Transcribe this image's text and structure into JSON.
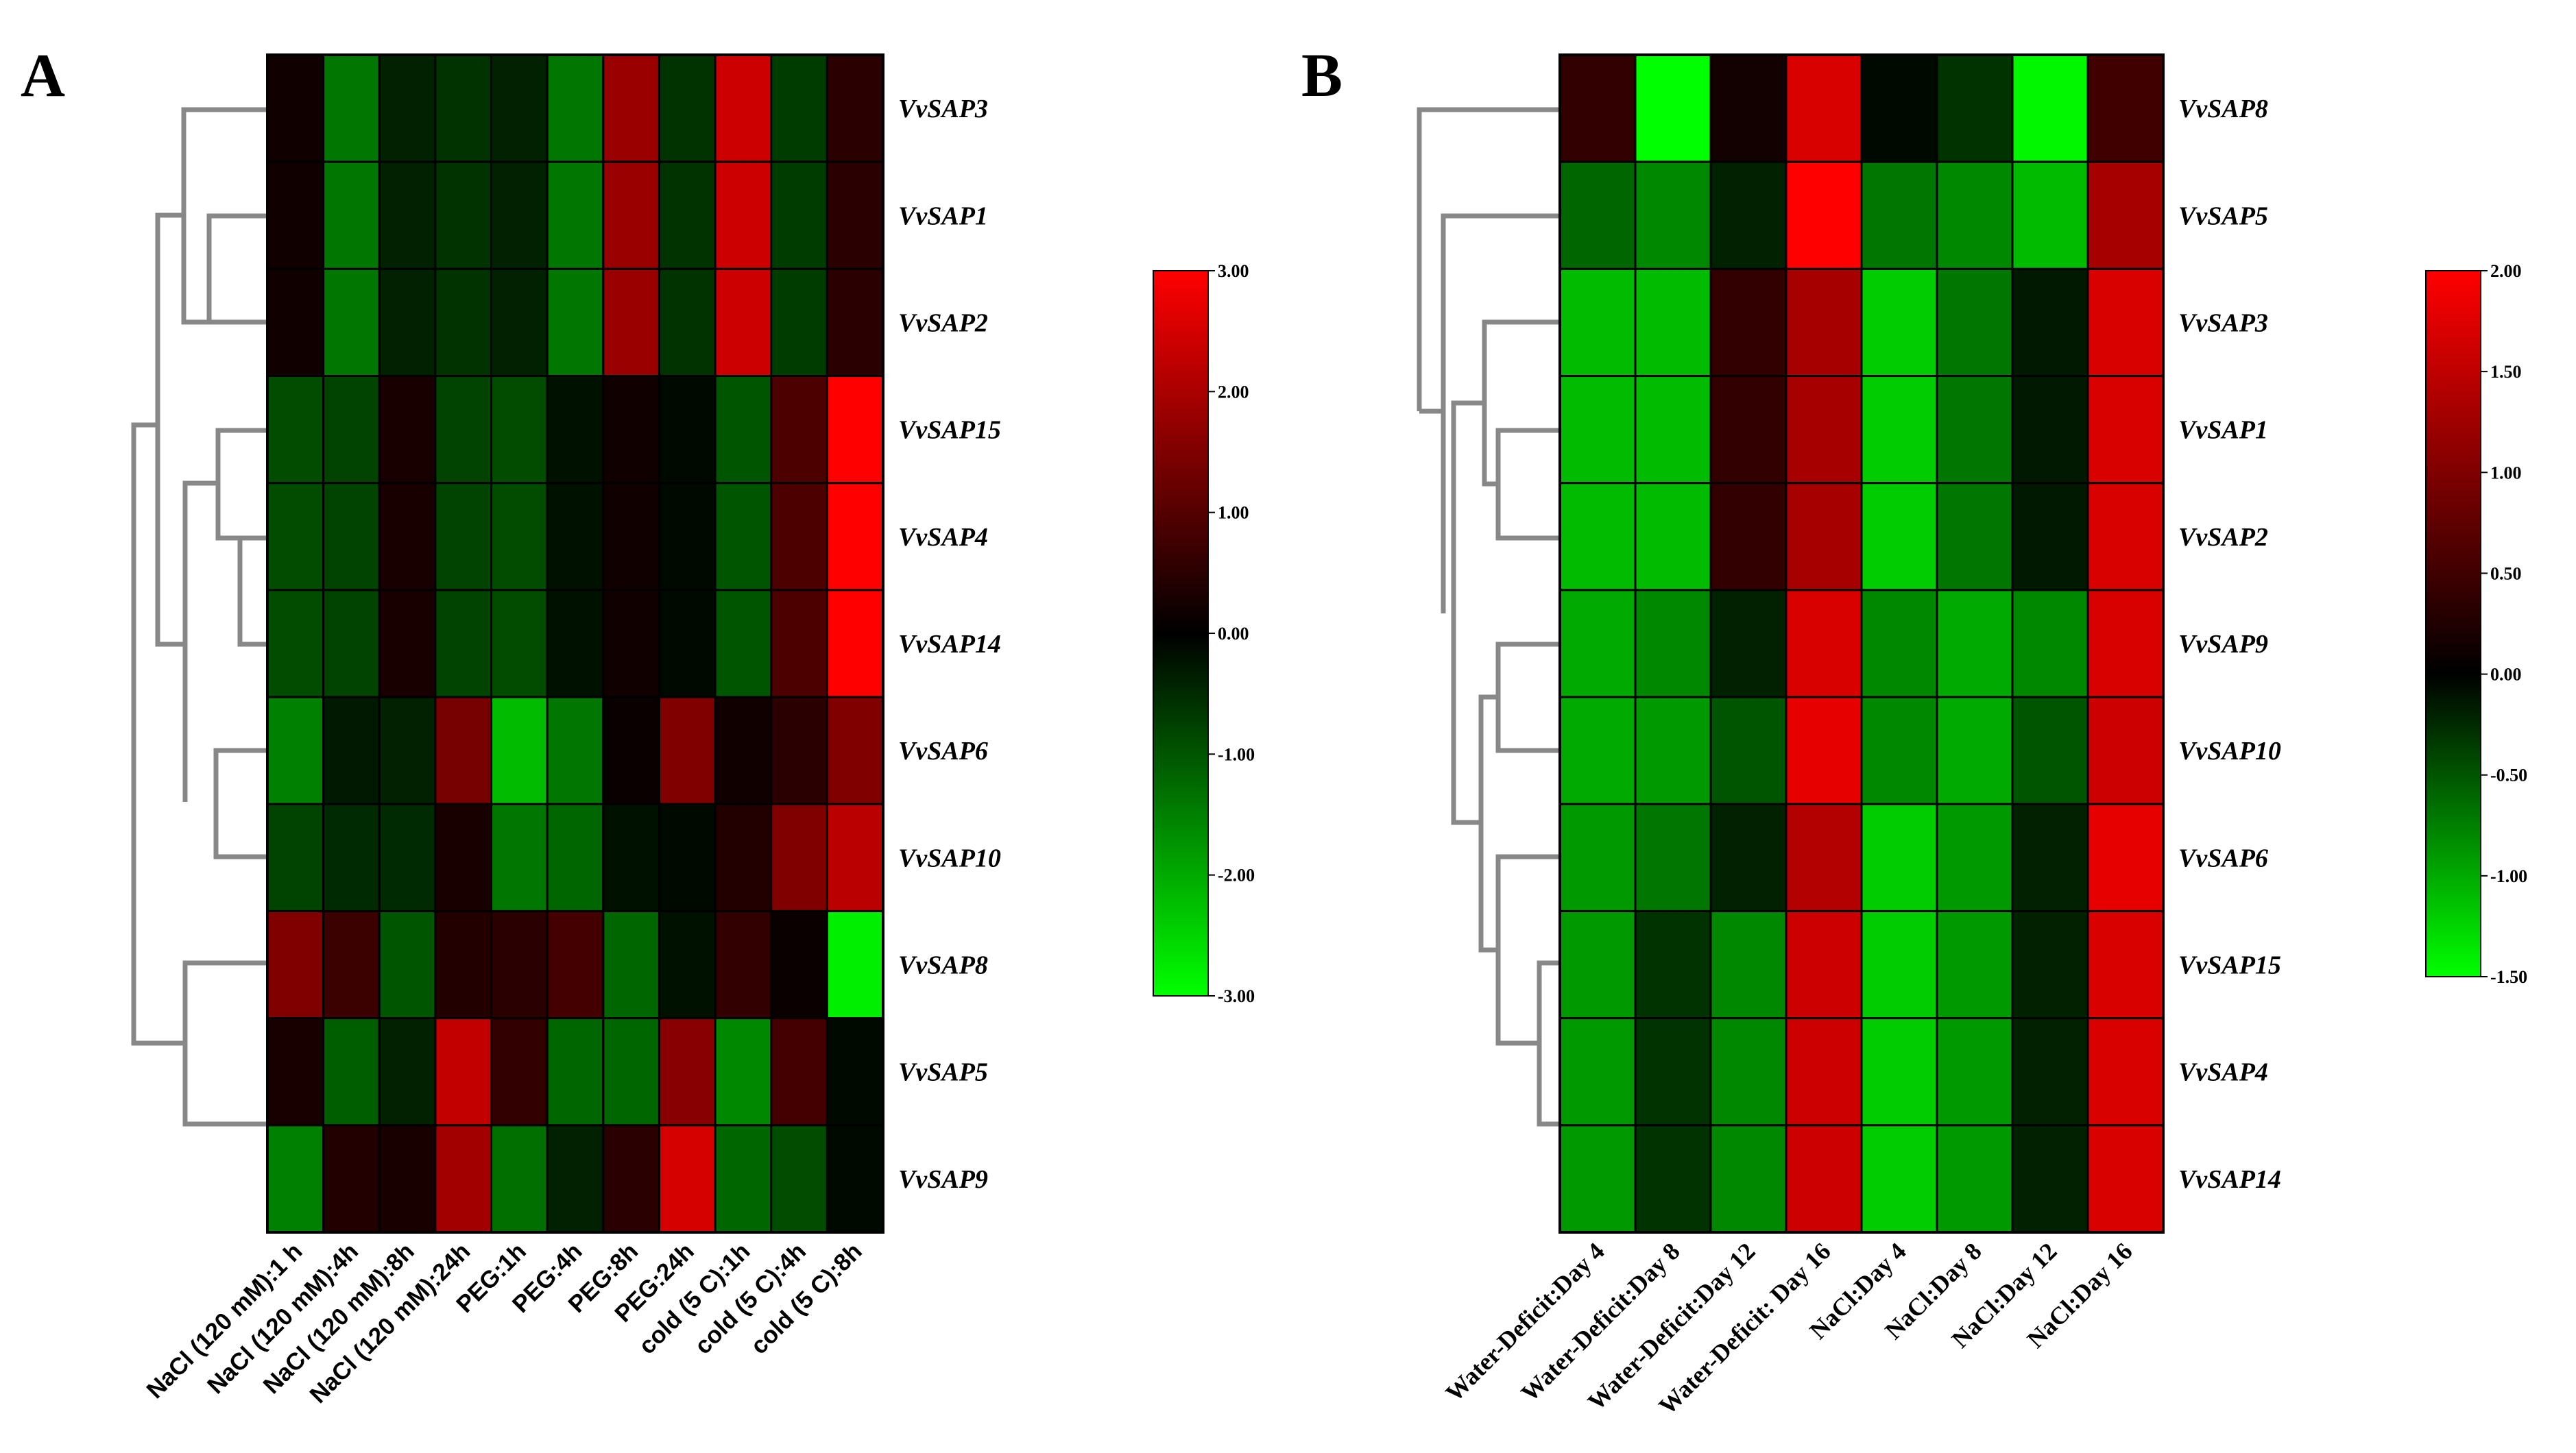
{
  "chart_data": [
    {
      "type": "heatmap",
      "panel_label": "A",
      "genes": [
        "VvSAP3",
        "VvSAP1",
        "VvSAP2",
        "VvSAP15",
        "VvSAP4",
        "VvSAP14",
        "VvSAP6",
        "VvSAP10",
        "VvSAP8",
        "VvSAP5",
        "VvSAP9"
      ],
      "conditions": [
        "NaCl (120 mM):1 h",
        "NaCl (120 mM):4h",
        "NaCl (120 mM):8h",
        "NaCl (120 mM):24h",
        "PEG:1h",
        "PEG:4h",
        "PEG:8h",
        "PEG:24h",
        "cold (5 C):1h",
        "cold (5 C):4h",
        "cold (5 C):8h"
      ],
      "values": [
        [
          0.2,
          -1.4,
          -0.4,
          -0.6,
          -0.4,
          -1.4,
          1.8,
          -0.6,
          2.4,
          -0.7,
          0.5
        ],
        [
          0.2,
          -1.4,
          -0.4,
          -0.6,
          -0.4,
          -1.4,
          1.8,
          -0.6,
          2.4,
          -0.7,
          0.5
        ],
        [
          0.2,
          -1.4,
          -0.4,
          -0.6,
          -0.4,
          -1.4,
          1.8,
          -0.6,
          2.4,
          -0.7,
          0.5
        ],
        [
          -0.9,
          -0.8,
          0.3,
          -0.8,
          -0.9,
          -0.2,
          0.2,
          -0.1,
          -1.0,
          0.9,
          3.0
        ],
        [
          -0.9,
          -0.8,
          0.3,
          -0.8,
          -0.9,
          -0.2,
          0.2,
          -0.1,
          -1.0,
          0.9,
          3.0
        ],
        [
          -0.9,
          -0.8,
          0.3,
          -0.8,
          -0.9,
          -0.2,
          0.2,
          -0.1,
          -1.0,
          0.9,
          3.0
        ],
        [
          -1.5,
          -0.3,
          -0.4,
          1.4,
          -2.2,
          -1.4,
          0.1,
          1.5,
          0.2,
          0.5,
          1.5
        ],
        [
          -0.8,
          -0.5,
          -0.5,
          0.3,
          -1.4,
          -1.2,
          -0.2,
          -0.1,
          0.4,
          1.5,
          2.2
        ],
        [
          1.5,
          0.7,
          -1.0,
          0.4,
          0.5,
          0.8,
          -1.2,
          -0.2,
          0.6,
          0.1,
          -2.8
        ],
        [
          0.3,
          -1.1,
          -0.4,
          2.3,
          0.6,
          -1.2,
          -1.2,
          1.6,
          -1.6,
          0.8,
          -0.1
        ],
        [
          -1.5,
          0.4,
          0.3,
          1.9,
          -1.3,
          -0.4,
          0.5,
          2.5,
          -1.2,
          -0.9,
          -0.1
        ]
      ],
      "legend": {
        "min": -3.0,
        "max": 3.0,
        "ticks": [
          "3.00",
          "2.00",
          "1.00",
          "0.00",
          "-1.00",
          "-2.00",
          "-3.00"
        ]
      },
      "colors": {
        "low": "#00ff00",
        "mid": "#000000",
        "high": "#ff0000"
      }
    },
    {
      "type": "heatmap",
      "panel_label": "B",
      "genes": [
        "VvSAP8",
        "VvSAP5",
        "VvSAP3",
        "VvSAP1",
        "VvSAP2",
        "VvSAP9",
        "VvSAP10",
        "VvSAP6",
        "VvSAP15",
        "VvSAP4",
        "VvSAP14"
      ],
      "conditions": [
        "Water-Deficit:Day 4",
        "Water-Deficit:Day 8",
        "Water-Deficit:Day 12",
        "Water-Deficit: Day 16",
        "NaCl:Day 4",
        "NaCl:Day 8",
        "NaCl:Day 12",
        "NaCl:Day 16"
      ],
      "values": [
        [
          0.4,
          -1.5,
          0.15,
          1.7,
          -0.05,
          -0.3,
          -1.45,
          0.5
        ],
        [
          -0.6,
          -0.8,
          -0.2,
          2.0,
          -0.7,
          -0.8,
          -1.1,
          1.3
        ],
        [
          -1.1,
          -1.1,
          0.4,
          1.3,
          -1.2,
          -0.7,
          -0.15,
          1.7
        ],
        [
          -1.1,
          -1.1,
          0.4,
          1.3,
          -1.2,
          -0.7,
          -0.15,
          1.7
        ],
        [
          -1.1,
          -1.1,
          0.4,
          1.3,
          -1.2,
          -0.7,
          -0.15,
          1.7
        ],
        [
          -1.0,
          -0.8,
          -0.2,
          1.7,
          -0.8,
          -1.0,
          -0.8,
          1.7
        ],
        [
          -1.0,
          -0.9,
          -0.5,
          1.8,
          -0.8,
          -1.0,
          -0.5,
          1.6
        ],
        [
          -0.9,
          -0.7,
          -0.2,
          1.4,
          -1.2,
          -0.9,
          -0.2,
          1.8
        ],
        [
          -0.9,
          -0.3,
          -0.8,
          1.6,
          -1.2,
          -0.9,
          -0.2,
          1.7
        ],
        [
          -0.9,
          -0.3,
          -0.8,
          1.6,
          -1.2,
          -0.9,
          -0.2,
          1.7
        ],
        [
          -0.9,
          -0.3,
          -0.8,
          1.6,
          -1.2,
          -0.9,
          -0.2,
          1.7
        ]
      ],
      "legend": {
        "min": -1.5,
        "max": 2.0,
        "ticks": [
          "2.00",
          "1.50",
          "1.00",
          "0.50",
          "0.00",
          "-0.50",
          "-1.00",
          "-1.50"
        ]
      },
      "colors": {
        "low": "#00ff00",
        "mid": "#000000",
        "high": "#ff0000"
      }
    }
  ]
}
